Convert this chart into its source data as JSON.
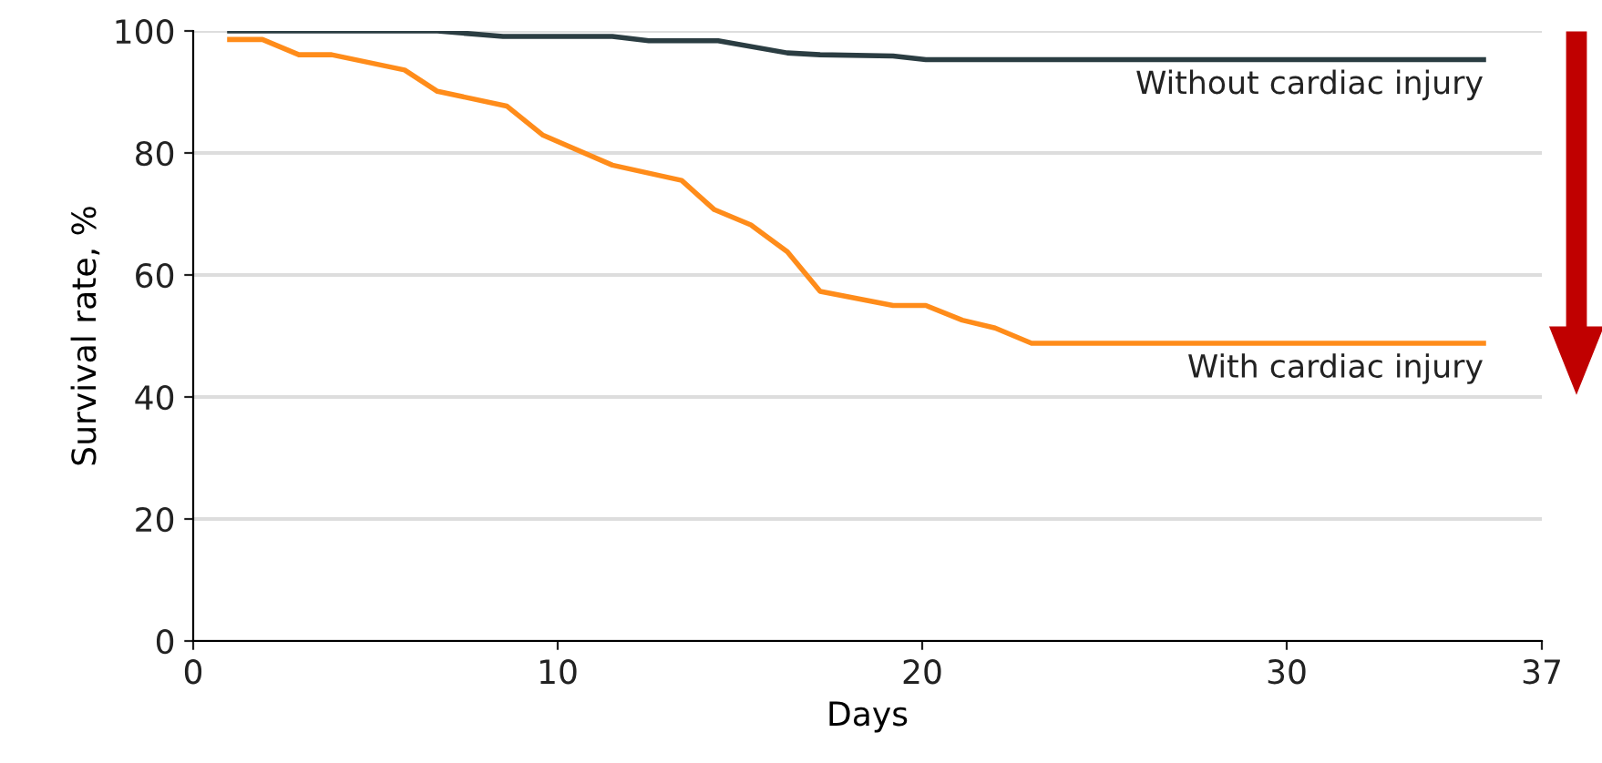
{
  "chart_data": {
    "type": "line",
    "xlabel": "Days",
    "ylabel": "Survival rate, %",
    "series": [
      {
        "name": "Without cardiac injury",
        "color": "#2b3d42",
        "x": [
          1,
          6.7,
          8.5,
          11.5,
          12.5,
          14.4,
          16.3,
          17.2,
          19.2,
          20.1,
          35.4
        ],
        "values": [
          100,
          100,
          99.1,
          99.1,
          98.4,
          98.4,
          96.4,
          96.1,
          95.9,
          95.3,
          95.3
        ]
      },
      {
        "name": "With cardiac injury",
        "color": "#ff8c1a",
        "x": [
          1,
          1.9,
          2.9,
          3.8,
          5.8,
          6.7,
          8.6,
          9.6,
          11.5,
          13.4,
          14.3,
          15.3,
          16.3,
          17.2,
          19.2,
          20.1,
          21.1,
          22,
          23,
          35.4
        ],
        "values": [
          98.6,
          98.6,
          96.1,
          96.1,
          93.6,
          90.1,
          87.7,
          82.9,
          78,
          75.5,
          70.7,
          68.2,
          63.8,
          57.3,
          55,
          55,
          52.6,
          51.3,
          48.8,
          48.8
        ]
      }
    ],
    "xlim": [
      0,
      37
    ],
    "xticks": [
      0,
      10,
      20,
      30,
      37
    ],
    "ylim": [
      0,
      100
    ],
    "yticks": [
      0,
      20,
      40,
      60,
      80,
      100
    ],
    "grid": "y",
    "legend": false,
    "marker": "none",
    "line_style": "solid"
  }
}
